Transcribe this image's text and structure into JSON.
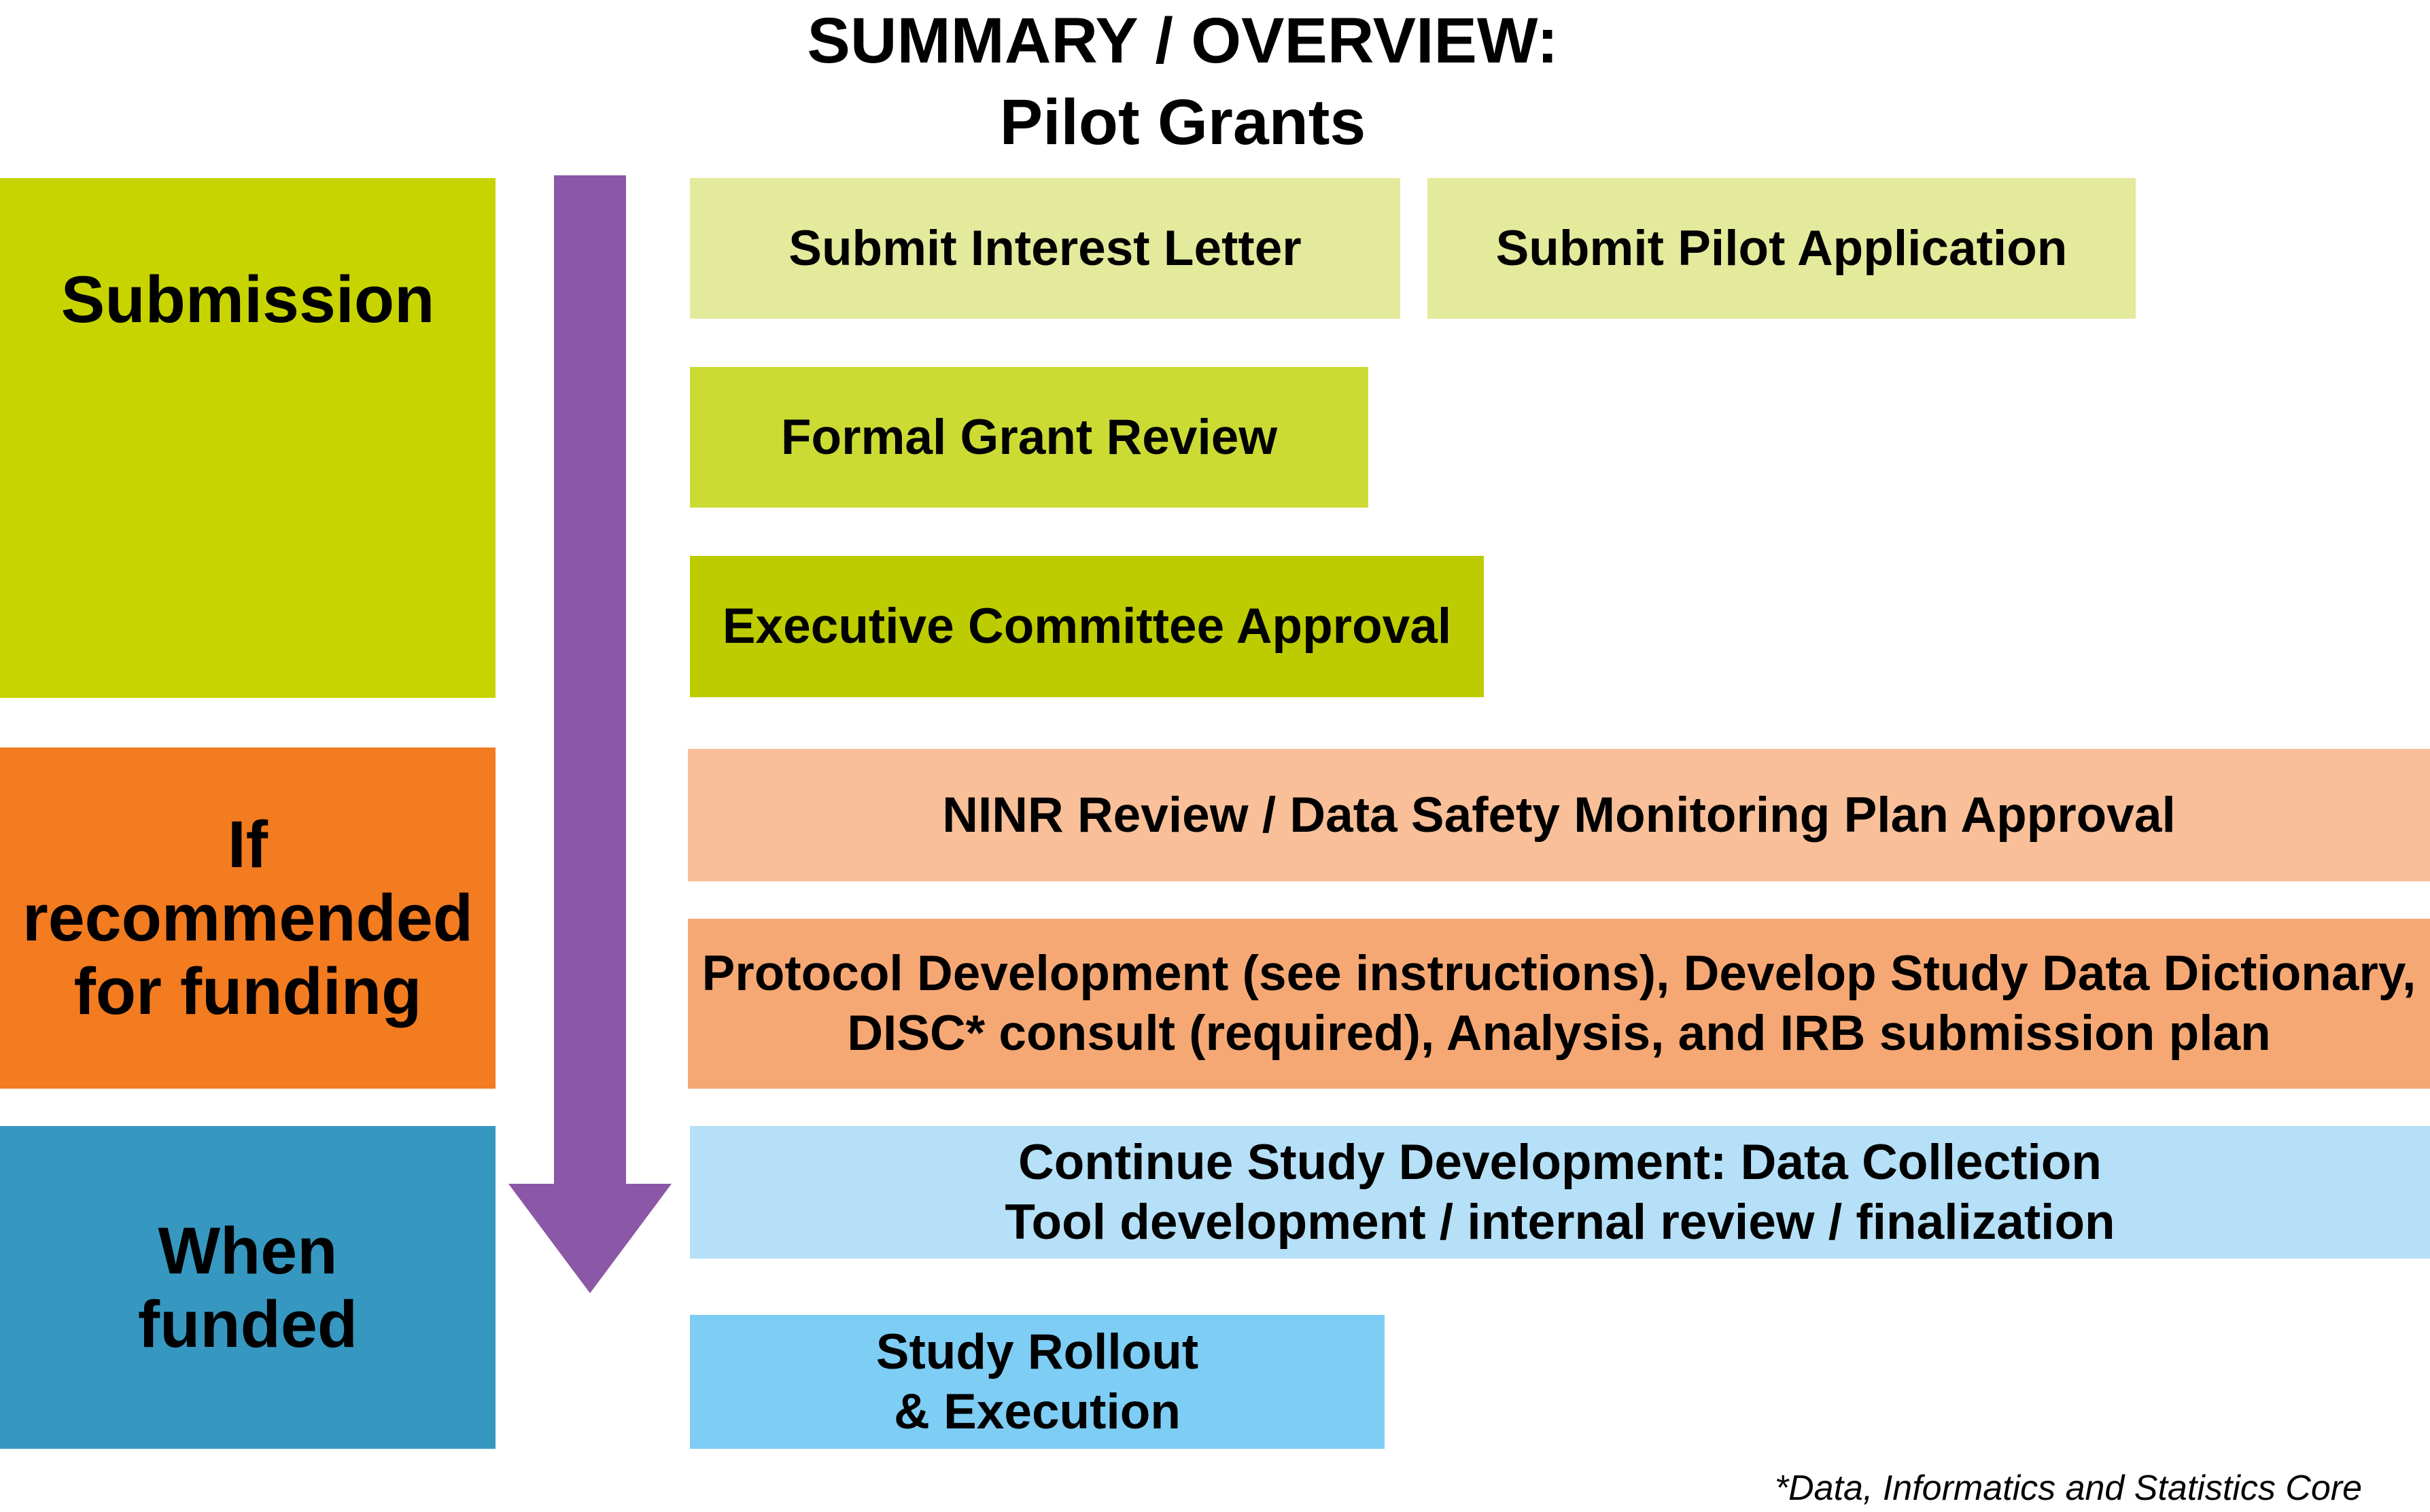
{
  "title": {
    "line1": "SUMMARY / OVERVIEW:",
    "line2": "Pilot Grants"
  },
  "phases": [
    {
      "label_lines": [
        "Submission"
      ],
      "color": "#c8d400"
    },
    {
      "label_lines": [
        "If recommended",
        "for funding"
      ],
      "color": "#f37b20"
    },
    {
      "label_lines": [
        "When",
        "funded"
      ],
      "color": "#3698c1"
    }
  ],
  "arrow": {
    "color": "#8b57a7",
    "icon": "down-arrow-icon"
  },
  "steps": [
    {
      "lines": [
        "Submit Interest Letter"
      ],
      "color": "#e3ea9b"
    },
    {
      "lines": [
        "Submit Pilot Application"
      ],
      "color": "#e3ea9b"
    },
    {
      "lines": [
        "Formal Grant Review"
      ],
      "color": "#ccdb34"
    },
    {
      "lines": [
        "Executive Committee Approval"
      ],
      "color": "#bccc00"
    },
    {
      "lines": [
        "NINR Review / Data Safety Monitoring Plan Approval"
      ],
      "color": "#f8bf98"
    },
    {
      "lines": [
        "Protocol Development (see instructions), Develop Study Data Dictionary,",
        "DISC* consult (required), Analysis, and IRB submission plan"
      ],
      "color": "#f6a874"
    },
    {
      "lines": [
        "Continue Study Development: Data Collection",
        "Tool development / internal review / finalization"
      ],
      "color": "#b5e0f7"
    },
    {
      "lines": [
        "Study Rollout",
        "& Execution"
      ],
      "color": "#7ecdf4"
    }
  ],
  "footnote": "*Data, Informatics and Statistics Core"
}
